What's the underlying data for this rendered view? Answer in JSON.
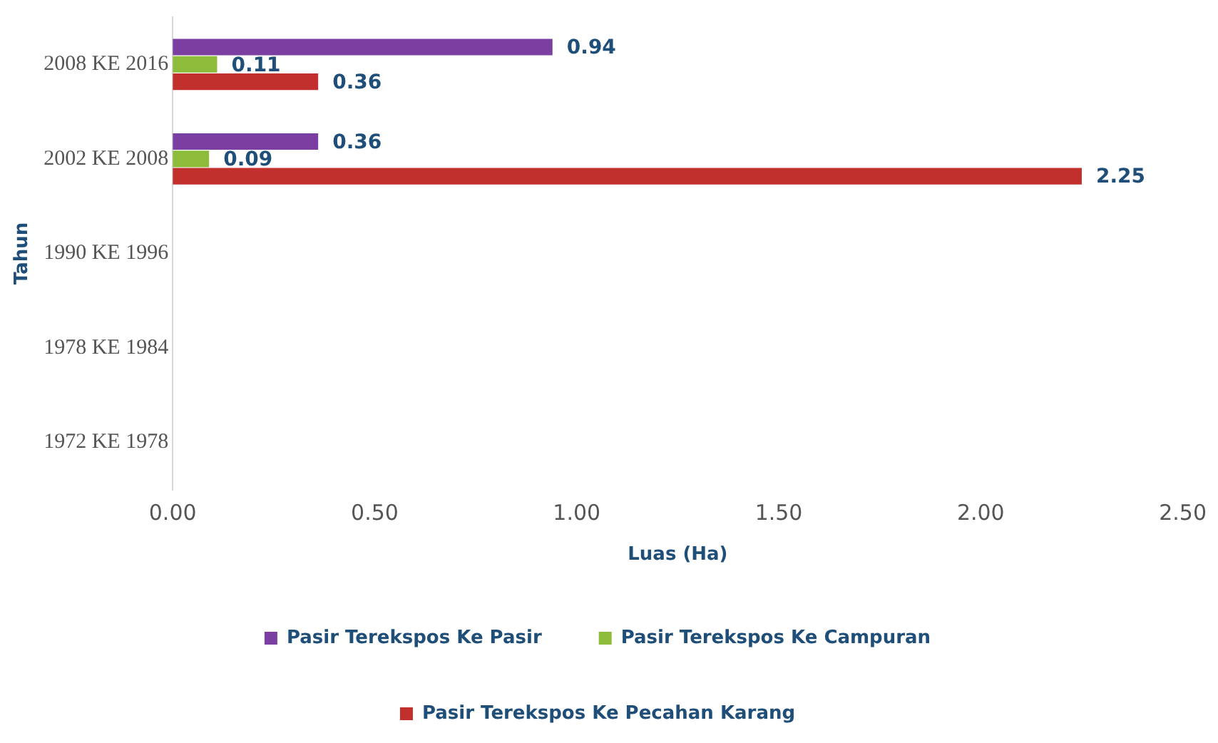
{
  "chart_data": {
    "type": "bar",
    "orientation": "horizontal",
    "xlabel": "Luas (Ha)",
    "ylabel": "Tahun",
    "categories": [
      "2008 KE 2016",
      "2002 KE 2008",
      "1990 KE 1996",
      "1978 KE 1984",
      "1972 KE 1978"
    ],
    "series": [
      {
        "name": "Pasir Terekspos Ke Pasir",
        "color": "#7a3fa0",
        "values": [
          0.94,
          0.36,
          null,
          null,
          null
        ]
      },
      {
        "name": "Pasir Terekspos Ke Campuran",
        "color": "#8dbb3a",
        "values": [
          0.11,
          0.09,
          null,
          null,
          null
        ]
      },
      {
        "name": "Pasir Terekspos Ke Pecahan Karang",
        "color": "#c1302c",
        "values": [
          0.36,
          2.25,
          null,
          null,
          null
        ]
      }
    ],
    "xlim": [
      0,
      2.5
    ],
    "xticks": [
      {
        "value": 0,
        "label": "0.00"
      },
      {
        "value": 0.5,
        "label": "0.50"
      },
      {
        "value": 1,
        "label": "1.00"
      },
      {
        "value": 1.5,
        "label": "1.50"
      },
      {
        "value": 2,
        "label": "2.00"
      },
      {
        "value": 2.5,
        "label": "2.50"
      }
    ],
    "grid": false,
    "legend": "bottom",
    "data_labels": true
  }
}
